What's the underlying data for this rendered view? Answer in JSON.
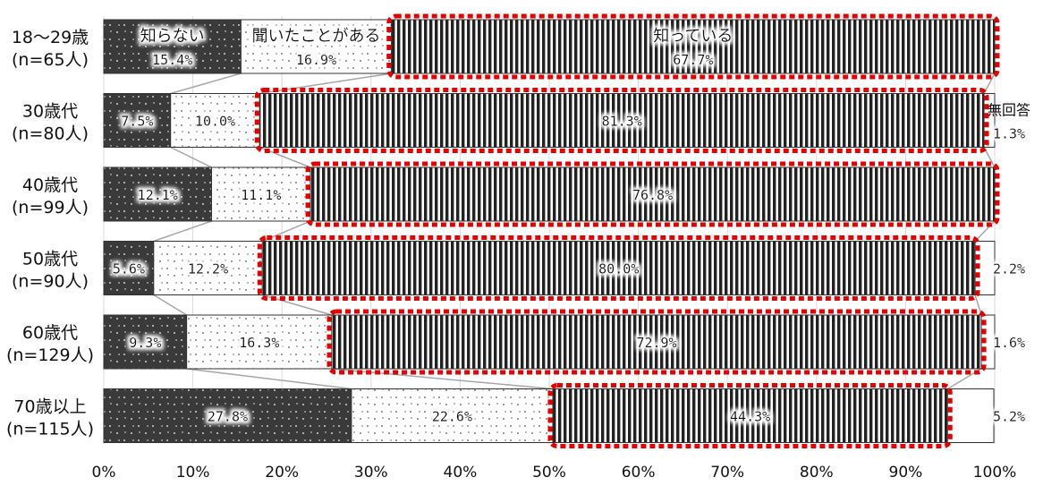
{
  "chart_data": {
    "type": "stacked-bar-horizontal",
    "title": "",
    "xlabel": "",
    "ylabel": "",
    "xlim": [
      0,
      100
    ],
    "x_ticks": [
      "0%",
      "10%",
      "20%",
      "30%",
      "40%",
      "50%",
      "60%",
      "70%",
      "80%",
      "90%",
      "100%"
    ],
    "categories": [
      {
        "line1": "18～29歳",
        "line2": "(n=65人)"
      },
      {
        "line1": "30歳代",
        "line2": "(n=80人)"
      },
      {
        "line1": "40歳代",
        "line2": "(n=99人)"
      },
      {
        "line1": "50歳代",
        "line2": "(n=90人)"
      },
      {
        "line1": "60歳代",
        "line2": "(n=129人)"
      },
      {
        "line1": "70歳以上",
        "line2": "(n=115人)"
      }
    ],
    "series": [
      {
        "name": "知らない",
        "pattern": "dark-dots",
        "color": "#3a3a3a",
        "values": [
          15.4,
          7.5,
          12.1,
          5.6,
          9.3,
          27.8
        ],
        "labels": [
          "15.4%",
          "7.5%",
          "12.1%",
          "5.6%",
          "9.3%",
          "27.8%"
        ]
      },
      {
        "name": "聞いたことがある",
        "pattern": "light-dots",
        "color": "#ffffff",
        "values": [
          16.9,
          10.0,
          11.1,
          12.2,
          16.3,
          22.6
        ],
        "labels": [
          "16.9%",
          "10.0%",
          "11.1%",
          "12.2%",
          "16.3%",
          "22.6%"
        ]
      },
      {
        "name": "知っている",
        "pattern": "vertical-stripes",
        "color": "#222222",
        "values": [
          67.7,
          81.3,
          76.8,
          80.0,
          72.9,
          44.3
        ],
        "labels": [
          "67.7%",
          "81.3%",
          "76.8%",
          "80.0%",
          "72.9%",
          "44.3%"
        ]
      },
      {
        "name": "無回答",
        "pattern": "blank",
        "color": "#ffffff",
        "values": [
          0,
          1.3,
          0,
          2.2,
          1.6,
          5.2
        ],
        "labels": [
          "",
          "1.3%",
          "",
          "2.2%",
          "1.6%",
          "5.2%"
        ]
      }
    ],
    "highlight_color": "#e60000",
    "connector_color": "#a6a6a6",
    "grid": true
  }
}
